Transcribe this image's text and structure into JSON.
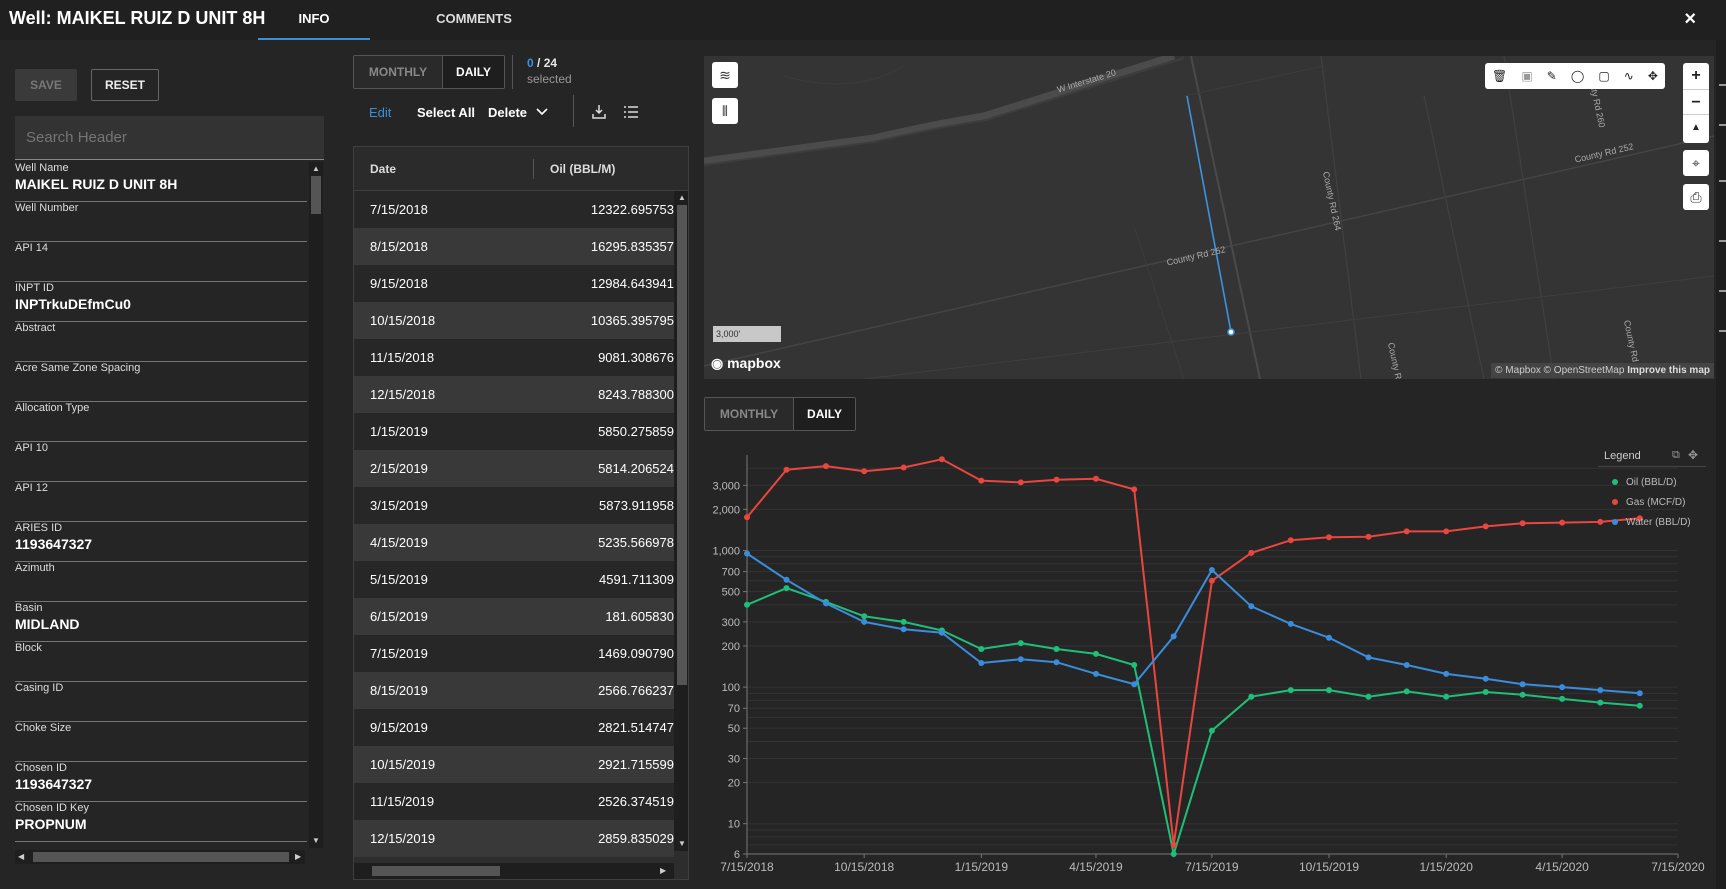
{
  "header": {
    "title": "Well: MAIKEL RUIZ D UNIT 8H",
    "tabs": [
      "INFO",
      "COMMENTS"
    ],
    "active_tab": "INFO",
    "close_icon": "×"
  },
  "left_panel": {
    "save_label": "SAVE",
    "reset_label": "RESET",
    "search_placeholder": "Search Header",
    "fields": [
      {
        "label": "Well Name",
        "value": "MAIKEL RUIZ D UNIT 8H"
      },
      {
        "label": "Well Number",
        "value": ""
      },
      {
        "label": "API 14",
        "value": ""
      },
      {
        "label": "INPT ID",
        "value": "INPTrkuDEfmCu0"
      },
      {
        "label": "Abstract",
        "value": ""
      },
      {
        "label": "Acre Same Zone Spacing",
        "value": ""
      },
      {
        "label": "Allocation Type",
        "value": ""
      },
      {
        "label": "API 10",
        "value": ""
      },
      {
        "label": "API 12",
        "value": ""
      },
      {
        "label": "ARIES ID",
        "value": "1193647327"
      },
      {
        "label": "Azimuth",
        "value": ""
      },
      {
        "label": "Basin",
        "value": "MIDLAND"
      },
      {
        "label": "Block",
        "value": ""
      },
      {
        "label": "Casing ID",
        "value": ""
      },
      {
        "label": "Choke Size",
        "value": ""
      },
      {
        "label": "Chosen ID",
        "value": "1193647327"
      },
      {
        "label": "Chosen ID Key",
        "value": "PROPNUM"
      }
    ]
  },
  "table_panel": {
    "toggle": [
      "MONTHLY",
      "DAILY"
    ],
    "active": "DAILY",
    "selected_count": "0",
    "selected_total": "/ 24",
    "selected_label": "selected",
    "edit_label": "Edit",
    "select_all_label": "Select All",
    "delete_label": "Delete",
    "columns": [
      "Date",
      "Oil (BBL/M)"
    ],
    "rows": [
      [
        "7/15/2018",
        "12322.695753"
      ],
      [
        "8/15/2018",
        "16295.835357"
      ],
      [
        "9/15/2018",
        "12984.643941"
      ],
      [
        "10/15/2018",
        "10365.395795"
      ],
      [
        "11/15/2018",
        "9081.308676"
      ],
      [
        "12/15/2018",
        "8243.788300"
      ],
      [
        "1/15/2019",
        "5850.275859"
      ],
      [
        "2/15/2019",
        "5814.206524"
      ],
      [
        "3/15/2019",
        "5873.911958"
      ],
      [
        "4/15/2019",
        "5235.566978"
      ],
      [
        "5/15/2019",
        "4591.711309"
      ],
      [
        "6/15/2019",
        "181.605830"
      ],
      [
        "7/15/2019",
        "1469.090790"
      ],
      [
        "8/15/2019",
        "2566.766237"
      ],
      [
        "9/15/2019",
        "2821.514747"
      ],
      [
        "10/15/2019",
        "2921.715599"
      ],
      [
        "11/15/2019",
        "2526.374519"
      ],
      [
        "12/15/2019",
        "2859.835029"
      ]
    ]
  },
  "map": {
    "roads": [
      "W Interstate 20",
      "County Rd 264",
      "County Rd 252",
      "County Rd 252",
      "County Rd 260",
      "County Rd",
      "County R"
    ],
    "scale_label": "3,000'",
    "logo": "mapbox",
    "attribution": "© Mapbox © OpenStreetMap",
    "improve_link": "Improve this map",
    "zoom_in": "+",
    "zoom_out": "−",
    "compass": "▲"
  },
  "chart_toggle": {
    "options": [
      "MONTHLY",
      "DAILY"
    ],
    "active": "DAILY"
  },
  "chart_data": {
    "type": "line",
    "y_scale": "log",
    "ylim": [
      6,
      5000
    ],
    "y_ticks": [
      "6",
      "10",
      "20",
      "30",
      "50",
      "70",
      "100",
      "200",
      "300",
      "500",
      "700",
      "1,000",
      "2,000",
      "3,000"
    ],
    "x_ticks": [
      "7/15/2018",
      "10/15/2018",
      "1/15/2019",
      "4/15/2019",
      "7/15/2019",
      "10/15/2019",
      "1/15/2020",
      "4/15/2020",
      "7/15/2020"
    ],
    "x": [
      "2018-07-15",
      "2018-08-15",
      "2018-09-15",
      "2018-10-15",
      "2018-11-15",
      "2018-12-15",
      "2019-01-15",
      "2019-02-15",
      "2019-03-15",
      "2019-04-15",
      "2019-05-15",
      "2019-06-15",
      "2019-07-15",
      "2019-08-15",
      "2019-09-15",
      "2019-10-15",
      "2019-11-15",
      "2019-12-15",
      "2020-01-15",
      "2020-02-15",
      "2020-03-15",
      "2020-04-15",
      "2020-05-15",
      "2020-06-15"
    ],
    "legend_title": "Legend",
    "legend_position": "top-right",
    "series": [
      {
        "name": "Oil (BBL/D)",
        "color": "#1fbf7a",
        "values": [
          400,
          530,
          420,
          330,
          300,
          260,
          190,
          210,
          190,
          175,
          145,
          6,
          48,
          85,
          95,
          95,
          85,
          93,
          85,
          92,
          88,
          82,
          77,
          73
        ]
      },
      {
        "name": "Gas (MCF/D)",
        "color": "#e8463f",
        "values": [
          1750,
          3900,
          4150,
          3800,
          4050,
          4650,
          3250,
          3150,
          3300,
          3350,
          2800,
          7,
          600,
          960,
          1190,
          1250,
          1260,
          1380,
          1380,
          1500,
          1580,
          1600,
          1620,
          1720
        ]
      },
      {
        "name": "Water (BBL/D)",
        "color": "#3a8ddc",
        "values": [
          950,
          610,
          410,
          300,
          265,
          250,
          150,
          160,
          152,
          125,
          105,
          235,
          720,
          390,
          290,
          230,
          165,
          145,
          125,
          115,
          105,
          100,
          95,
          90
        ]
      }
    ]
  }
}
